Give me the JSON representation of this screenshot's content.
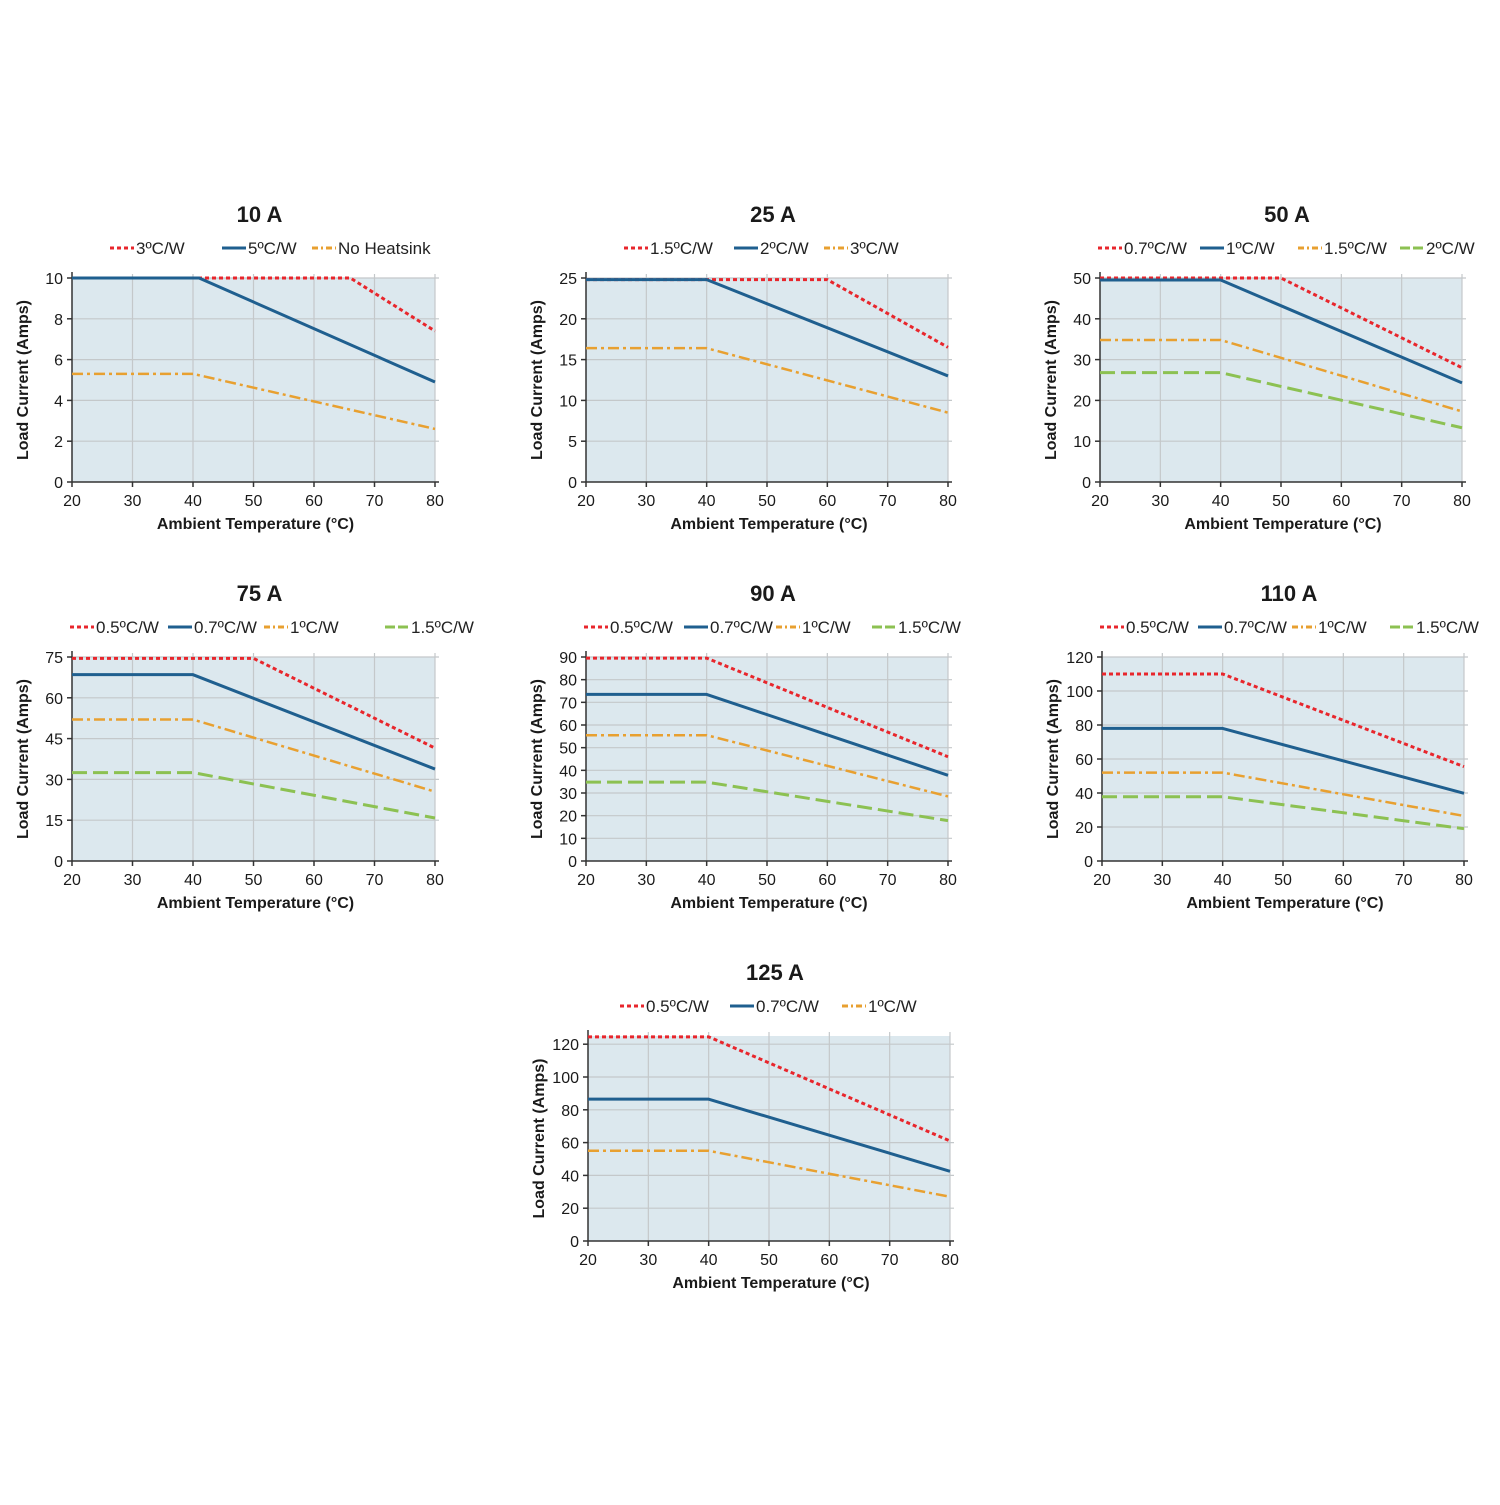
{
  "colors": {
    "red": "#e8262c",
    "blue": "#1f5f8f",
    "orange": "#e8a030",
    "green": "#8cc152",
    "plot_bg": "#dce8ee",
    "grid": "#c4c8ca",
    "axis": "#333333"
  },
  "chart_data": [
    {
      "type": "line",
      "title": "10 A",
      "xlabel": "Ambient Temperature (°C)",
      "ylabel": "Load Current (Amps)",
      "xlim": [
        20,
        80
      ],
      "ylim": [
        0,
        10
      ],
      "xticks": [
        20,
        30,
        40,
        50,
        60,
        70,
        80
      ],
      "yticks": [
        0,
        2,
        4,
        6,
        8,
        10
      ],
      "series": [
        {
          "name": "3ºC/W",
          "style": "dotted",
          "color": "red",
          "x": [
            20,
            66,
            80
          ],
          "y": [
            10,
            10,
            7.4
          ]
        },
        {
          "name": "5ºC/W",
          "style": "solid",
          "color": "blue",
          "x": [
            20,
            41,
            80
          ],
          "y": [
            10,
            10,
            4.9
          ]
        },
        {
          "name": "No Heatsink",
          "style": "dashdot",
          "color": "orange",
          "x": [
            20,
            40,
            80
          ],
          "y": [
            5.3,
            5.3,
            2.6
          ]
        }
      ]
    },
    {
      "type": "line",
      "title": "25 A",
      "xlabel": "Ambient Temperature (°C)",
      "ylabel": "Load Current (Amps)",
      "xlim": [
        20,
        80
      ],
      "ylim": [
        0,
        25
      ],
      "xticks": [
        20,
        30,
        40,
        50,
        60,
        70,
        80
      ],
      "yticks": [
        0,
        5,
        10,
        15,
        20,
        25
      ],
      "series": [
        {
          "name": "1.5ºC/W",
          "style": "dotted",
          "color": "red",
          "x": [
            20,
            60,
            80
          ],
          "y": [
            24.8,
            24.8,
            16.5
          ]
        },
        {
          "name": "2ºC/W",
          "style": "solid",
          "color": "blue",
          "x": [
            20,
            40,
            80
          ],
          "y": [
            24.8,
            24.8,
            13
          ]
        },
        {
          "name": "3ºC/W",
          "style": "dashdot",
          "color": "orange",
          "x": [
            20,
            40,
            80
          ],
          "y": [
            16.4,
            16.4,
            8.5
          ]
        }
      ]
    },
    {
      "type": "line",
      "title": "50 A",
      "xlabel": "Ambient Temperature (°C)",
      "ylabel": "Load Current (Amps)",
      "xlim": [
        20,
        80
      ],
      "ylim": [
        0,
        50
      ],
      "xticks": [
        20,
        30,
        40,
        50,
        60,
        70,
        80
      ],
      "yticks": [
        0,
        10,
        20,
        30,
        40,
        50
      ],
      "series": [
        {
          "name": "0.7ºC/W",
          "style": "dotted",
          "color": "red",
          "x": [
            20,
            50,
            80
          ],
          "y": [
            50,
            50,
            28
          ]
        },
        {
          "name": "1ºC/W",
          "style": "solid",
          "color": "blue",
          "x": [
            20,
            40,
            80
          ],
          "y": [
            49.5,
            49.5,
            24.3
          ]
        },
        {
          "name": "1.5ºC/W",
          "style": "dashdot",
          "color": "orange",
          "x": [
            20,
            40,
            80
          ],
          "y": [
            34.8,
            34.8,
            17.3
          ]
        },
        {
          "name": "2ºC/W",
          "style": "dashed",
          "color": "green",
          "x": [
            20,
            40,
            80
          ],
          "y": [
            26.8,
            26.8,
            13.3
          ]
        }
      ]
    },
    {
      "type": "line",
      "title": "75 A",
      "xlabel": "Ambient Temperature (°C)",
      "ylabel": "Load Current (Amps)",
      "xlim": [
        20,
        80
      ],
      "ylim": [
        0,
        75
      ],
      "xticks": [
        20,
        30,
        40,
        50,
        60,
        70,
        80
      ],
      "yticks": [
        0,
        15,
        30,
        45,
        60,
        75
      ],
      "series": [
        {
          "name": "0.5ºC/W",
          "style": "dotted",
          "color": "red",
          "x": [
            20,
            50,
            80
          ],
          "y": [
            74.5,
            74.5,
            41.5
          ]
        },
        {
          "name": "0.7ºC/W",
          "style": "solid",
          "color": "blue",
          "x": [
            20,
            40,
            80
          ],
          "y": [
            68.5,
            68.5,
            33.8
          ]
        },
        {
          "name": "1ºC/W",
          "style": "dashdot",
          "color": "orange",
          "x": [
            20,
            40,
            80
          ],
          "y": [
            52,
            52,
            25.5
          ]
        },
        {
          "name": "1.5ºC/W",
          "style": "dashed",
          "color": "green",
          "x": [
            20,
            40,
            80
          ],
          "y": [
            32.5,
            32.5,
            15.8
          ]
        }
      ]
    },
    {
      "type": "line",
      "title": "90 A",
      "xlabel": "Ambient Temperature (°C)",
      "ylabel": "Load Current (Amps)",
      "xlim": [
        20,
        80
      ],
      "ylim": [
        0,
        90
      ],
      "xticks": [
        20,
        30,
        40,
        50,
        60,
        70,
        80
      ],
      "yticks": [
        0,
        10,
        20,
        30,
        40,
        50,
        60,
        70,
        80,
        90
      ],
      "series": [
        {
          "name": "0.5ºC/W",
          "style": "dotted",
          "color": "red",
          "x": [
            20,
            40,
            80
          ],
          "y": [
            89.5,
            89.5,
            46
          ]
        },
        {
          "name": "0.7ºC/W",
          "style": "solid",
          "color": "blue",
          "x": [
            20,
            40,
            80
          ],
          "y": [
            73.5,
            73.5,
            37.8
          ]
        },
        {
          "name": "1ºC/W",
          "style": "dashdot",
          "color": "orange",
          "x": [
            20,
            40,
            80
          ],
          "y": [
            55.5,
            55.5,
            28.5
          ]
        },
        {
          "name": "1.5ºC/W",
          "style": "dashed",
          "color": "green",
          "x": [
            20,
            40,
            80
          ],
          "y": [
            34.8,
            34.8,
            17.8
          ]
        }
      ]
    },
    {
      "type": "line",
      "title": "110 A",
      "xlabel": "Ambient Temperature (°C)",
      "ylabel": "Load Current (Amps)",
      "xlim": [
        20,
        80
      ],
      "ylim": [
        0,
        120
      ],
      "xticks": [
        20,
        30,
        40,
        50,
        60,
        70,
        80
      ],
      "yticks": [
        0,
        20,
        40,
        60,
        80,
        100,
        120
      ],
      "series": [
        {
          "name": "0.5ºC/W",
          "style": "dotted",
          "color": "red",
          "x": [
            20,
            40,
            80
          ],
          "y": [
            110,
            110,
            55.5
          ]
        },
        {
          "name": "0.7ºC/W",
          "style": "solid",
          "color": "blue",
          "x": [
            20,
            40,
            80
          ],
          "y": [
            78,
            78,
            39.8
          ]
        },
        {
          "name": "1ºC/W",
          "style": "dashdot",
          "color": "orange",
          "x": [
            20,
            40,
            80
          ],
          "y": [
            52,
            52,
            26.5
          ]
        },
        {
          "name": "1.5ºC/W",
          "style": "dashed",
          "color": "green",
          "x": [
            20,
            40,
            80
          ],
          "y": [
            37.8,
            37.8,
            19
          ]
        }
      ]
    },
    {
      "type": "line",
      "title": "125 A",
      "xlabel": "Ambient Temperature (°C)",
      "ylabel": "Load Current (Amps)",
      "xlim": [
        20,
        80
      ],
      "ylim": [
        0,
        125
      ],
      "xticks": [
        20,
        30,
        40,
        50,
        60,
        70,
        80
      ],
      "yticks": [
        0,
        20,
        40,
        60,
        80,
        100,
        120
      ],
      "series": [
        {
          "name": "0.5ºC/W",
          "style": "dotted",
          "color": "red",
          "x": [
            20,
            40,
            80
          ],
          "y": [
            124.5,
            124.5,
            61
          ]
        },
        {
          "name": "0.7ºC/W",
          "style": "solid",
          "color": "blue",
          "x": [
            20,
            40,
            80
          ],
          "y": [
            86.5,
            86.5,
            42.5
          ]
        },
        {
          "name": "1ºC/W",
          "style": "dashdot",
          "color": "orange",
          "x": [
            20,
            40,
            80
          ],
          "y": [
            55,
            55,
            27
          ]
        }
      ]
    }
  ]
}
